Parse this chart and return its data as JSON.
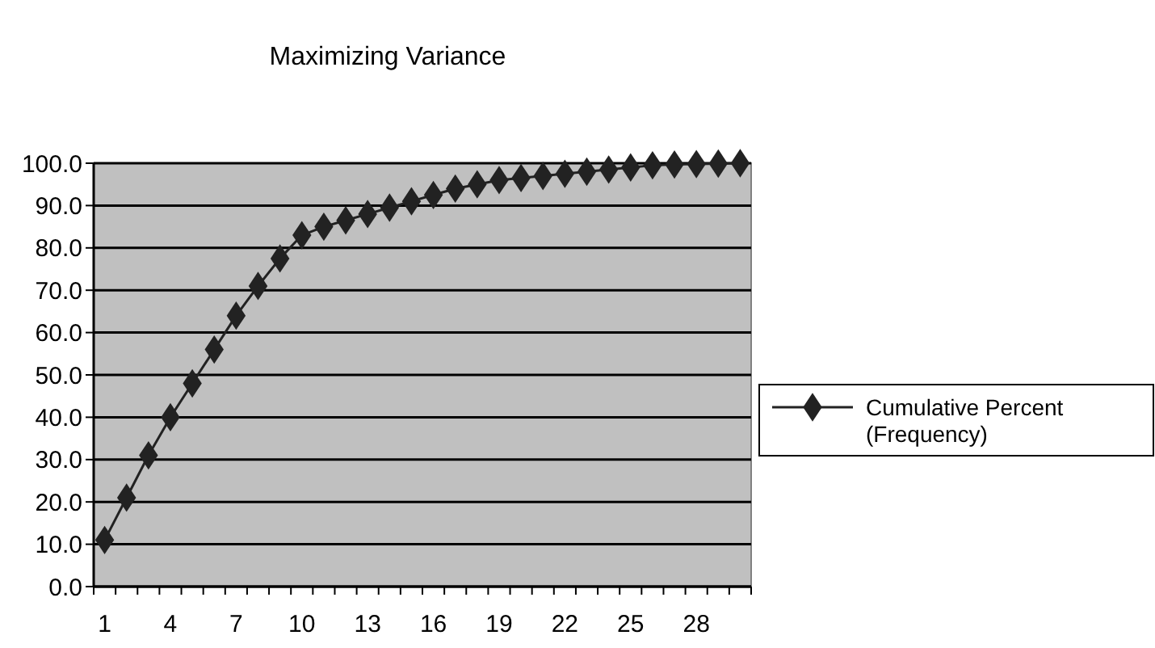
{
  "chart_data": {
    "type": "line",
    "title": "Maximizing Variance",
    "categories": [
      "1",
      null,
      null,
      "4",
      null,
      null,
      "7",
      null,
      null,
      "10",
      null,
      null,
      "13",
      null,
      null,
      "16",
      null,
      null,
      "19",
      null,
      null,
      "22",
      null,
      null,
      "25",
      null,
      null,
      "28",
      null,
      null
    ],
    "series": [
      {
        "name": "Cumulative Percent (Frequency)",
        "color": "#222222",
        "values": [
          11,
          21,
          31,
          40,
          48,
          56,
          64,
          71,
          77.5,
          83,
          85,
          86.5,
          88,
          89.5,
          91,
          92.5,
          94,
          95,
          96,
          96.5,
          97,
          97.5,
          98,
          98.5,
          99,
          99.5,
          99.7,
          99.8,
          99.9,
          100
        ]
      }
    ],
    "ylim": [
      0,
      100
    ],
    "yticks": [
      {
        "value": 0,
        "label": "0.0"
      },
      {
        "value": 10,
        "label": "10.0"
      },
      {
        "value": 20,
        "label": "20.0"
      },
      {
        "value": 30,
        "label": "30.0"
      },
      {
        "value": 40,
        "label": "40.0"
      },
      {
        "value": 50,
        "label": "50.0"
      },
      {
        "value": 60,
        "label": "60.0"
      },
      {
        "value": 70,
        "label": "70.0"
      },
      {
        "value": 80,
        "label": "80.0"
      },
      {
        "value": 90,
        "label": "90.0"
      },
      {
        "value": 100,
        "label": "100.0"
      }
    ],
    "grid": "y",
    "legend": "right",
    "marker": "diamond",
    "line_style": "solid"
  }
}
